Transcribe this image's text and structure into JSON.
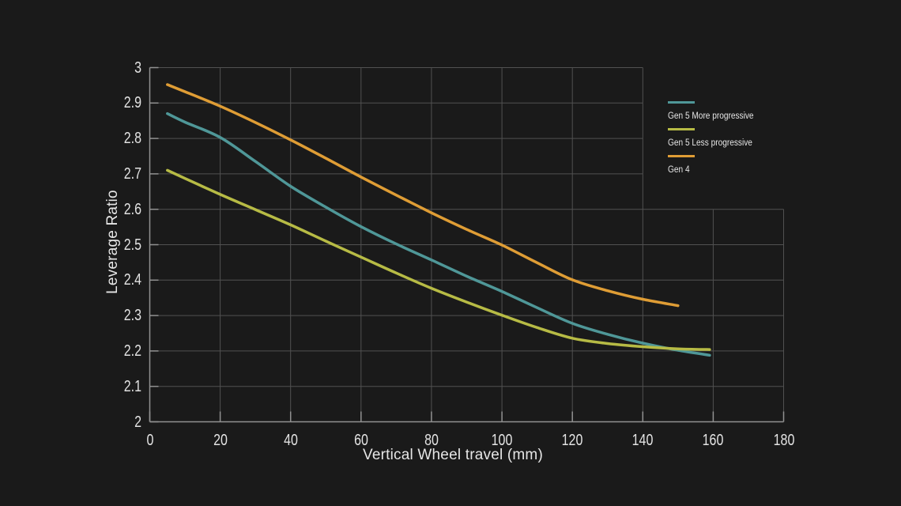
{
  "page": {
    "background_color": "#1a1a1a",
    "text_color": "#e3e3e3"
  },
  "chart_data": {
    "type": "line",
    "xlabel": "Vertical Wheel travel (mm)",
    "ylabel": "Leverage Ratio",
    "xlim": [
      0,
      180
    ],
    "ylim": [
      2,
      3
    ],
    "x_ticks": [
      0,
      20,
      40,
      60,
      80,
      100,
      120,
      140,
      160,
      180
    ],
    "x_tick_labels": [
      "0",
      "20",
      "40",
      "60",
      "80",
      "100",
      "120",
      "140",
      "160",
      "180"
    ],
    "y_ticks": [
      2,
      2.1,
      2.2,
      2.3,
      2.4,
      2.5,
      2.6,
      2.7,
      2.8,
      2.9,
      3
    ],
    "y_tick_labels": [
      "2",
      "2.1",
      "2.2",
      "2.3",
      "2.4",
      "2.5",
      "2.6",
      "2.7",
      "2.8",
      "2.9",
      "3"
    ],
    "grid": true,
    "legend_position": "top-right",
    "colors": {
      "grid": "#515151",
      "axis": "#919191"
    },
    "series": [
      {
        "name": "Gen 5 More progressive",
        "color": "#4f9798",
        "x": [
          5,
          10,
          20,
          30,
          40,
          50,
          60,
          70,
          80,
          90,
          100,
          110,
          120,
          130,
          140,
          150,
          159
        ],
        "y": [
          2.87,
          2.846,
          2.803,
          2.735,
          2.665,
          2.606,
          2.551,
          2.502,
          2.457,
          2.411,
          2.368,
          2.322,
          2.278,
          2.247,
          2.222,
          2.202,
          2.188
        ]
      },
      {
        "name": "Gen 5 Less progressive",
        "color": "#b7bb45",
        "x": [
          5,
          10,
          20,
          30,
          40,
          50,
          60,
          70,
          80,
          90,
          100,
          110,
          120,
          130,
          140,
          150,
          159
        ],
        "y": [
          2.71,
          2.687,
          2.642,
          2.599,
          2.556,
          2.51,
          2.465,
          2.42,
          2.377,
          2.338,
          2.301,
          2.266,
          2.236,
          2.221,
          2.212,
          2.206,
          2.204
        ]
      },
      {
        "name": "Gen 4",
        "color": "#df9d35",
        "x": [
          5,
          10,
          20,
          30,
          40,
          50,
          60,
          70,
          80,
          90,
          100,
          110,
          120,
          130,
          140,
          150
        ],
        "y": [
          2.952,
          2.932,
          2.891,
          2.845,
          2.796,
          2.744,
          2.691,
          2.64,
          2.59,
          2.543,
          2.499,
          2.449,
          2.401,
          2.37,
          2.346,
          2.328
        ]
      }
    ]
  }
}
